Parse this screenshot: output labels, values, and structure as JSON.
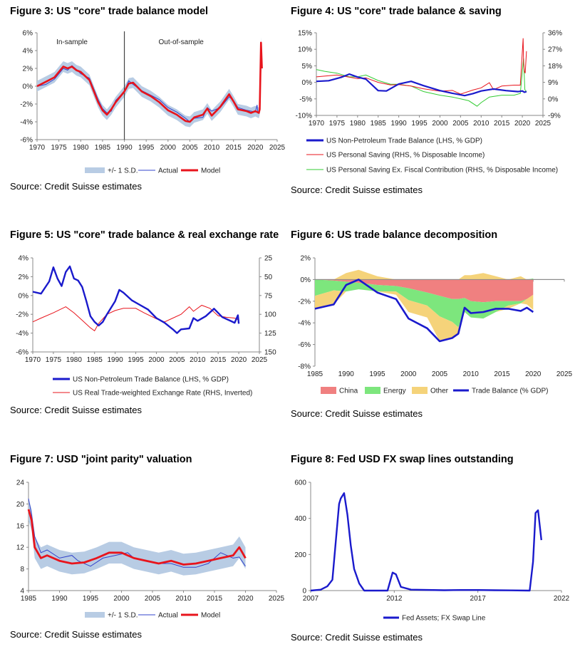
{
  "chart_data": [
    {
      "id": "fig3",
      "type": "line",
      "title": "Figure 3: US \"core\" trade balance model",
      "xlim": [
        1970,
        2025
      ],
      "ylim": [
        -6,
        6
      ],
      "x_ticks": [
        "1970",
        "1975",
        "1980",
        "1985",
        "1990",
        "1995",
        "2000",
        "2005",
        "2010",
        "2015",
        "2020",
        "2025"
      ],
      "y_ticks": [
        "6%",
        "4%",
        "2%",
        "0%",
        "-2%",
        "-4%",
        "-6%"
      ],
      "annotations": [
        "In-sample",
        "Out-of-sample"
      ],
      "divider_x": 1990,
      "legend": [
        "+/- 1 S.D.",
        "Actual",
        "Model"
      ],
      "band_width": 0.6,
      "colors": {
        "band": "#b8cce4",
        "actual": "#3344cc",
        "model": "#e8141c"
      },
      "series": [
        {
          "name": "Actual",
          "x": [
            1970,
            1972,
            1974,
            1976,
            1977,
            1978,
            1979,
            1980,
            1982,
            1984,
            1985,
            1986,
            1987,
            1988,
            1990,
            1991,
            1992,
            1994,
            1996,
            1998,
            2000,
            2002,
            2004,
            2005,
            2006,
            2008,
            2009,
            2010,
            2012,
            2014,
            2015,
            2016,
            2018,
            2019,
            2020,
            2020.4,
            2020.6,
            2021
          ],
          "y": [
            0,
            0.2,
            0.8,
            2,
            1.8,
            2.3,
            1.9,
            1.4,
            0.9,
            -1.5,
            -2.5,
            -3,
            -2.8,
            -1.6,
            -0.6,
            0.6,
            0.2,
            -0.5,
            -1,
            -1.5,
            -2.4,
            -2.9,
            -3.6,
            -4,
            -3.6,
            -3.5,
            -2.4,
            -2.8,
            -2.4,
            -1.2,
            -1.6,
            -2.4,
            -2.7,
            -2.8,
            -2.9,
            -2.1,
            -3,
            -2.9
          ]
        },
        {
          "name": "Model",
          "x": [
            1970,
            1972,
            1974,
            1976,
            1977,
            1978,
            1979,
            1980,
            1982,
            1984,
            1985,
            1986,
            1987,
            1988,
            1990,
            1991,
            1992,
            1994,
            1996,
            1998,
            2000,
            2002,
            2004,
            2005,
            2006,
            2008,
            2009,
            2010,
            2012,
            2014,
            2015,
            2016,
            2018,
            2019,
            2020,
            2020.8,
            2021,
            2021.3,
            2021.5
          ],
          "y": [
            0,
            0.5,
            1,
            2.2,
            2,
            2.2,
            1.8,
            1.6,
            0.7,
            -1.8,
            -2.7,
            -3.2,
            -2.6,
            -1.8,
            -0.6,
            0.3,
            0.4,
            -0.6,
            -1.1,
            -1.8,
            -2.7,
            -3.2,
            -3.9,
            -4,
            -3.5,
            -3.2,
            -2.5,
            -3.3,
            -2.3,
            -0.9,
            -1.7,
            -2.6,
            -2.8,
            -3,
            -2.8,
            -3,
            -2.6,
            4.9,
            2
          ]
        }
      ]
    },
    {
      "id": "fig4",
      "type": "line",
      "title": "Figure 4: US \"core\" trade balance & saving",
      "xlim": [
        1970,
        2025
      ],
      "ylim": [
        -10,
        15
      ],
      "y2lim": [
        -9,
        36
      ],
      "x_ticks": [
        "1970",
        "1975",
        "1980",
        "1985",
        "1990",
        "1995",
        "2000",
        "2005",
        "2010",
        "2015",
        "2020",
        "2025"
      ],
      "y_ticks": [
        "15%",
        "10%",
        "5%",
        "0%",
        "-5%",
        "-10%"
      ],
      "y2_ticks": [
        "36%",
        "27%",
        "18%",
        "9%",
        "0%",
        "-9%"
      ],
      "legend": [
        "US Non-Petroleum Trade Balance (LHS, % GDP)",
        "US Personal Saving (RHS, % Disposable Income)",
        "US Personal Saving Ex. Fiscal Contribution (RHS, % Disposable Income)"
      ],
      "colors": {
        "trade": "#1a1acc",
        "saving": "#e8141c",
        "saving_ex": "#33cc33"
      },
      "series": [
        {
          "name": "US Non-Petroleum Trade Balance (LHS, % GDP)",
          "axis": "left",
          "x": [
            1970,
            1973,
            1976,
            1978,
            1980,
            1982,
            1985,
            1987,
            1990,
            1993,
            1996,
            2000,
            2003,
            2006,
            2008,
            2010,
            2013,
            2016,
            2019,
            2020,
            2020.5,
            2021
          ],
          "y": [
            0.3,
            0.5,
            1.5,
            2.5,
            1.6,
            1,
            -2.5,
            -2.6,
            -0.5,
            0.3,
            -1,
            -2.5,
            -3.3,
            -4,
            -3.4,
            -2.6,
            -2,
            -2.5,
            -2.8,
            -2.6,
            -3,
            -2.8
          ]
        },
        {
          "name": "US Personal Saving (RHS, % Disposable Income)",
          "axis": "right",
          "x": [
            1970,
            1975,
            1980,
            1982,
            1985,
            1988,
            1990,
            1993,
            1996,
            2000,
            2003,
            2005,
            2008,
            2010,
            2012,
            2013,
            2015,
            2018,
            2019.5,
            2020.2,
            2020.3,
            2020.5,
            2020.7,
            2021
          ],
          "y": [
            12,
            13,
            11,
            11.5,
            9,
            7.6,
            7.8,
            7,
            5.5,
            4.2,
            4.6,
            2.6,
            4.8,
            6,
            8.8,
            5,
            7,
            7.5,
            7.5,
            33,
            20,
            15,
            14,
            26
          ]
        },
        {
          "name": "US Personal Saving Ex. Fiscal Contribution (RHS, % Disposable Income)",
          "axis": "right",
          "x": [
            1970,
            1972,
            1975,
            1978,
            1980,
            1982,
            1985,
            1988,
            1990,
            1993,
            1996,
            2000,
            2003,
            2005,
            2007,
            2009,
            2010,
            2012,
            2015,
            2018,
            2019.5,
            2020.3,
            2020.6,
            2021
          ],
          "y": [
            16,
            15,
            14,
            12,
            12,
            13,
            10,
            8,
            8,
            7,
            4,
            2,
            1,
            0,
            -1,
            -4,
            -2,
            1,
            2,
            2,
            3,
            22,
            5,
            4
          ]
        }
      ]
    },
    {
      "id": "fig5",
      "type": "line",
      "title": "Figure 5: US \"core\" trade balance & real exchange rate",
      "xlim": [
        1970,
        2025
      ],
      "ylim": [
        -6,
        4
      ],
      "y2lim": [
        150,
        25
      ],
      "x_ticks": [
        "1970",
        "1975",
        "1980",
        "1985",
        "1990",
        "1995",
        "2000",
        "2005",
        "2010",
        "2015",
        "2020",
        "2025"
      ],
      "y_ticks": [
        "4%",
        "2%",
        "0%",
        "-2%",
        "-4%",
        "-6%"
      ],
      "y2_ticks": [
        "25",
        "50",
        "75",
        "100",
        "125",
        "150"
      ],
      "legend": [
        "US Non-Petroleum Trade Balance (LHS, % GDP)",
        "US Real Trade-weighted Exchange Rate (RHS, Inverted)"
      ],
      "colors": {
        "trade": "#1a1acc",
        "fx": "#e8141c"
      },
      "series": [
        {
          "name": "US Non-Petroleum Trade Balance (LHS, % GDP)",
          "axis": "left",
          "x": [
            1970,
            1972,
            1974,
            1975,
            1976,
            1977,
            1978,
            1979,
            1980,
            1981,
            1982,
            1983,
            1984,
            1985,
            1986,
            1987,
            1988,
            1990,
            1991,
            1992,
            1994,
            1996,
            1998,
            2000,
            2002,
            2004,
            2005,
            2006,
            2008,
            2009,
            2010,
            2012,
            2014,
            2016,
            2018,
            2019,
            2019.8,
            2020
          ],
          "y": [
            0.4,
            0.2,
            1.5,
            3,
            1.8,
            1,
            2.5,
            3.1,
            1.8,
            1.6,
            0.9,
            -0.6,
            -2.2,
            -2.8,
            -3.2,
            -2.8,
            -2,
            -0.6,
            0.6,
            0.3,
            -0.5,
            -1,
            -1.5,
            -2.4,
            -2.9,
            -3.6,
            -4,
            -3.6,
            -3.5,
            -2.4,
            -2.7,
            -2.2,
            -1.4,
            -2.3,
            -2.7,
            -2.9,
            -2.1,
            -3
          ]
        },
        {
          "name": "US Real Trade-weighted Exchange Rate (RHS, Inverted)",
          "axis": "right",
          "x": [
            1970,
            1972,
            1975,
            1978,
            1980,
            1982,
            1984,
            1985,
            1986,
            1988,
            1990,
            1992,
            1995,
            1997,
            2000,
            2002,
            2004,
            2006,
            2008,
            2009,
            2011,
            2013,
            2015,
            2017,
            2019,
            2020
          ],
          "y": [
            110,
            105,
            98,
            90,
            98,
            108,
            118,
            122,
            112,
            100,
            95,
            92,
            92,
            98,
            106,
            110,
            105,
            100,
            90,
            96,
            88,
            92,
            102,
            104,
            105,
            108
          ]
        }
      ]
    },
    {
      "id": "fig6",
      "type": "area",
      "title": "Figure 6: US trade balance decomposition",
      "xlim": [
        1985,
        2025
      ],
      "ylim": [
        -8,
        2
      ],
      "x_ticks": [
        "1985",
        "1990",
        "1995",
        "2000",
        "2005",
        "2010",
        "2015",
        "2020",
        "2025"
      ],
      "y_ticks": [
        "2%",
        "0%",
        "-2%",
        "-4%",
        "-6%",
        "-8%"
      ],
      "legend": [
        "China",
        "Energy",
        "Other",
        "Trade Balance (% GDP)"
      ],
      "colors": {
        "China": "#f08080",
        "Energy": "#7de67d",
        "Other": "#f5d37a",
        "Trade": "#1a1acc"
      },
      "x": [
        1985,
        1988,
        1990,
        1992,
        1995,
        1998,
        2000,
        2003,
        2005,
        2007,
        2008,
        2009,
        2010,
        2012,
        2014,
        2016,
        2018,
        2019,
        2020
      ],
      "series": [
        {
          "name": "China",
          "values": [
            0,
            -0.1,
            -0.2,
            -0.3,
            -0.5,
            -0.6,
            -0.8,
            -1.2,
            -1.5,
            -1.8,
            -1.8,
            -1.7,
            -2,
            -2.1,
            -2,
            -2,
            -2,
            -1.8,
            -1.4
          ]
        },
        {
          "name": "Energy",
          "values": [
            -1.5,
            -0.9,
            -0.9,
            -0.6,
            -0.6,
            -0.5,
            -1.1,
            -1.2,
            -1.9,
            -2.1,
            -2.6,
            -1.3,
            -1.5,
            -1.5,
            -1,
            -0.4,
            -0.2,
            0,
            0.1
          ]
        },
        {
          "name": "Other",
          "values": [
            -1.2,
            -1.3,
            0.6,
            0.9,
            0.3,
            -0.3,
            -1.1,
            -1.1,
            -2.3,
            -1.5,
            -0.5,
            0.4,
            0.4,
            0.6,
            0.3,
            -0.3,
            0.3,
            -0.5,
            -1.4
          ]
        },
        {
          "name": "Trade Balance (% GDP)",
          "values": [
            -2.7,
            -2.3,
            -0.5,
            0,
            -1.2,
            -1.8,
            -3.6,
            -4.5,
            -5.7,
            -5.4,
            -5,
            -2.6,
            -3.1,
            -3,
            -2.7,
            -2.7,
            -2.9,
            -2.6,
            -3
          ]
        }
      ]
    },
    {
      "id": "fig7",
      "type": "line",
      "title": "Figure 7: USD \"joint parity\" valuation",
      "xlim": [
        1985,
        2025
      ],
      "ylim": [
        4,
        24
      ],
      "x_ticks": [
        "1985",
        "1990",
        "1995",
        "2000",
        "2005",
        "2010",
        "2015",
        "2020",
        "2025"
      ],
      "y_ticks": [
        "24",
        "20",
        "16",
        "12",
        "8",
        "4"
      ],
      "legend": [
        "+/- 1 S.D.",
        "Actual",
        "Model"
      ],
      "band_width": 2,
      "colors": {
        "band": "#b8cce4",
        "actual": "#3344cc",
        "model": "#e8141c"
      },
      "series": [
        {
          "name": "Actual",
          "x": [
            1985,
            1985.5,
            1986,
            1987,
            1988,
            1990,
            1992,
            1993,
            1995,
            1997,
            1999,
            2001,
            2002,
            2004,
            2006,
            2008,
            2010,
            2012,
            2014,
            2016,
            2018,
            2019,
            2020
          ],
          "y": [
            21,
            18,
            14,
            11,
            11.5,
            10,
            10.5,
            9.5,
            8.5,
            10,
            10.5,
            11,
            10,
            9.5,
            9,
            9,
            8.3,
            8.3,
            9,
            11,
            10,
            10.2,
            8.5
          ]
        },
        {
          "name": "Model",
          "x": [
            1985,
            1985.5,
            1986,
            1987,
            1988,
            1990,
            1992,
            1994,
            1996,
            1998,
            2000,
            2002,
            2004,
            2006,
            2008,
            2010,
            2012,
            2014,
            2016,
            2018,
            2019,
            2019.5,
            2020
          ],
          "y": [
            19,
            17,
            12,
            10,
            10.5,
            9.5,
            9,
            9.2,
            10,
            11,
            11,
            10,
            9.5,
            9,
            9.5,
            8.8,
            9,
            9.5,
            10,
            10.5,
            12,
            11,
            10
          ]
        }
      ]
    },
    {
      "id": "fig8",
      "type": "line",
      "title": "Figure 8: Fed USD FX swap lines outstanding",
      "xlim": [
        2007,
        2022
      ],
      "ylim": [
        0,
        600
      ],
      "x_ticks": [
        "2007",
        "2012",
        "2017",
        "2022"
      ],
      "y_ticks": [
        "600",
        "400",
        "200",
        "0"
      ],
      "legend": [
        "Fed Assets; FX Swap Line"
      ],
      "colors": {
        "line": "#1a1acc"
      },
      "series": [
        {
          "name": "Fed Assets; FX Swap Line",
          "x": [
            2007,
            2007.6,
            2008,
            2008.3,
            2008.7,
            2008.8,
            2009,
            2009.2,
            2009.4,
            2009.6,
            2009.9,
            2010.2,
            2010.5,
            2011.6,
            2011.9,
            2012.1,
            2012.4,
            2013,
            2015,
            2016,
            2017,
            2018,
            2019,
            2020.1,
            2020.3,
            2020.45,
            2020.6,
            2020.8
          ],
          "y": [
            0,
            5,
            24,
            60,
            480,
            510,
            540,
            420,
            250,
            120,
            40,
            0,
            0,
            0,
            100,
            90,
            20,
            5,
            2,
            3,
            3,
            2,
            1,
            0,
            160,
            430,
            445,
            280
          ]
        }
      ]
    }
  ],
  "sources": {
    "fig3": "Source: Credit Suisse estimates",
    "fig4": "Source: Credit Suisse estimates",
    "fig5": "Source: Credit Suisse estimates",
    "fig6": "Source: Credit Suisse estimates",
    "fig7": "Source: Credit Suisse estimates",
    "fig8": "Source: Credit Suisse estimates"
  }
}
